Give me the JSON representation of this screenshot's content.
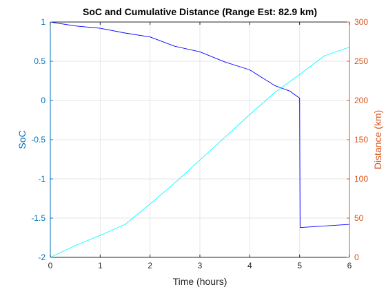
{
  "chart_data": {
    "type": "line",
    "title": "SoC and Cumulative Distance (Range Est: 82.9 km)",
    "xlabel": "Time (hours)",
    "ylabel_left": "SoC",
    "ylabel_right": "Distance (km)",
    "xlim": [
      0,
      6
    ],
    "ylim_left": [
      -2,
      1
    ],
    "ylim_right": [
      0,
      300
    ],
    "x_ticks": [
      0,
      1,
      2,
      3,
      4,
      5,
      6
    ],
    "y_left_ticks": [
      -2,
      -1.5,
      -1,
      -0.5,
      0,
      0.5,
      1
    ],
    "y_right_ticks": [
      0,
      50,
      100,
      150,
      200,
      250,
      300
    ],
    "grid": true,
    "colors": {
      "left_axis": "#0072bd",
      "right_axis": "#d95319",
      "soc_line": "#0000ff",
      "distance_line": "#00ffff",
      "grid": "#e6e6e6",
      "axes": "#262626"
    },
    "series": [
      {
        "axis": "left",
        "color": "#0000ff",
        "x": [
          0,
          0.5,
          1,
          1.5,
          2,
          2.5,
          3,
          3.5,
          4,
          4.5,
          4.8,
          5.0,
          5.01,
          6
        ],
        "values": [
          1.0,
          0.95,
          0.92,
          0.86,
          0.81,
          0.69,
          0.62,
          0.49,
          0.39,
          0.19,
          0.12,
          0.03,
          -1.62,
          -1.58
        ]
      },
      {
        "axis": "right",
        "color": "#00ffff",
        "x": [
          0,
          0.5,
          1,
          1.5,
          2,
          2.5,
          3,
          3.5,
          4,
          4.5,
          5,
          5.5,
          6
        ],
        "values": [
          0,
          15,
          28,
          42,
          68,
          95,
          124,
          153,
          182,
          210,
          233,
          257,
          268
        ]
      }
    ]
  }
}
